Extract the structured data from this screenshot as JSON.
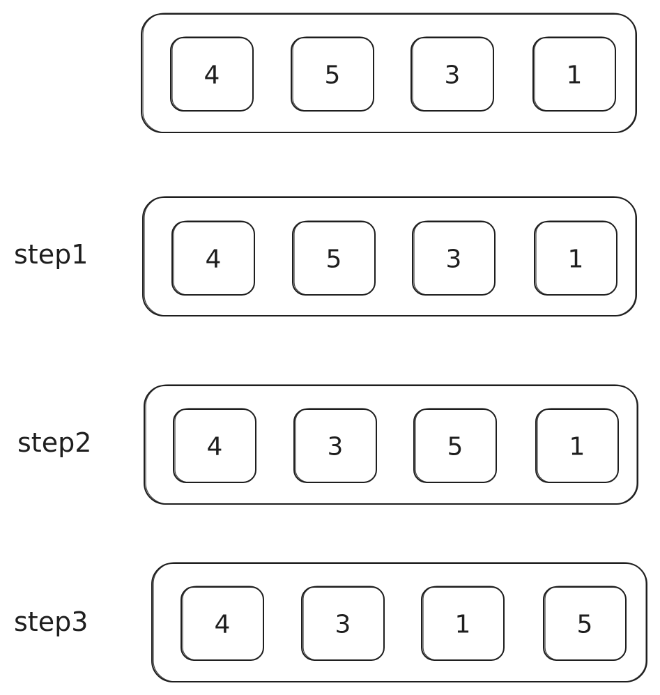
{
  "rows": [
    {
      "label": "",
      "values": [
        "4",
        "5",
        "3",
        "1"
      ]
    },
    {
      "label": "step1",
      "values": [
        "4",
        "5",
        "3",
        "1"
      ]
    },
    {
      "label": "step2",
      "values": [
        "4",
        "3",
        "5",
        "1"
      ]
    },
    {
      "label": "step3",
      "values": [
        "4",
        "3",
        "1",
        "5"
      ]
    }
  ]
}
